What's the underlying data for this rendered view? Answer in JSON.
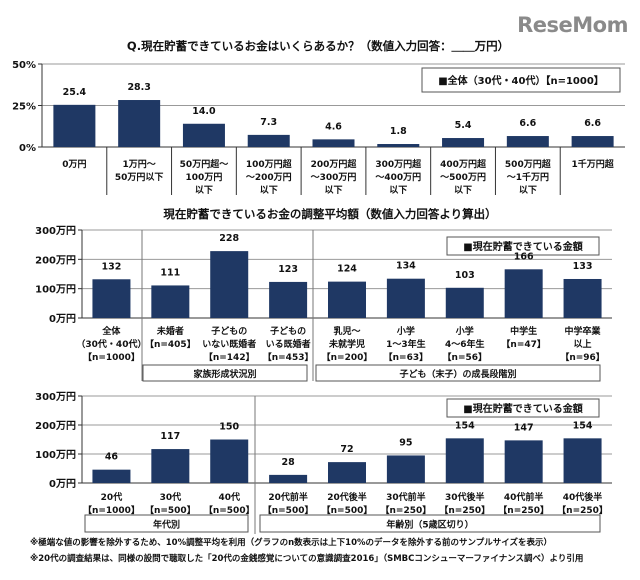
{
  "logo": "ReseMom",
  "colors": {
    "bar": "#1f3864",
    "grid": "#999999"
  },
  "chart_data": [
    {
      "type": "bar",
      "title": "Q.現在貯蓄できているお金はいくらあるか？（数値入力回答：＿＿万円）",
      "legend": "■全体（30代・40代）【n=1000】",
      "legend_position": "top-right",
      "ylim": [
        0,
        50
      ],
      "yticks": [
        "0%",
        "25%",
        "50%"
      ],
      "ytick_values": [
        0,
        25,
        50
      ],
      "grid": true,
      "categories": [
        [
          "0万円"
        ],
        [
          "1万円～",
          "50万円以下"
        ],
        [
          "50万円超～",
          "100万円",
          "以下"
        ],
        [
          "100万円超",
          "～200万円",
          "以下"
        ],
        [
          "200万円超",
          "～300万円",
          "以下"
        ],
        [
          "300万円超",
          "～400万円",
          "以下"
        ],
        [
          "400万円超",
          "～500万円",
          "以下"
        ],
        [
          "500万円超",
          "～1千万円",
          "以下"
        ],
        [
          "1千万円超"
        ]
      ],
      "values": [
        25.4,
        28.3,
        14.0,
        7.3,
        4.6,
        1.8,
        5.4,
        6.6,
        6.6
      ],
      "labels": [
        "25.4",
        "28.3",
        "14.0",
        "7.3",
        "4.6",
        "1.8",
        "5.4",
        "6.6",
        "6.6"
      ]
    },
    {
      "type": "bar",
      "title": "現在貯蓄できているお金の調整平均額（数値入力回答より算出）",
      "legend": "■現在貯蓄できている金額",
      "legend_position": "top-right",
      "ylim": [
        0,
        300
      ],
      "yticks": [
        "0万円",
        "100万円",
        "200万円",
        "300万円"
      ],
      "ytick_values": [
        0,
        100,
        200,
        300
      ],
      "grid": true,
      "categories": [
        [
          "全体",
          "（30代・40代）",
          "【n=1000】"
        ],
        [
          "未婚者",
          "【n=405】"
        ],
        [
          "子どもの",
          "いない既婚者",
          "【n=142】"
        ],
        [
          "子どもの",
          "いる既婚者",
          "【n=453】"
        ],
        [
          "乳児～",
          "未就学児",
          "【n=200】"
        ],
        [
          "小学",
          "1～3年生",
          "【n=63】"
        ],
        [
          "小学",
          "4～6年生",
          "【n=56】"
        ],
        [
          "中学生",
          "【n=47】"
        ],
        [
          "中学卒業",
          "以上",
          "【n=96】"
        ]
      ],
      "values": [
        132,
        111,
        228,
        123,
        124,
        134,
        103,
        166,
        133
      ],
      "labels": [
        "132",
        "111",
        "228",
        "123",
        "124",
        "134",
        "103",
        "166",
        "133"
      ],
      "groups": [
        {
          "label": "家族形成状況別"
        },
        {
          "label": "子ども（末子）の成長段階別"
        }
      ]
    },
    {
      "type": "bar",
      "legend": "■現在貯蓄できている金額",
      "legend_position": "top-right",
      "ylim": [
        0,
        300
      ],
      "yticks": [
        "0万円",
        "100万円",
        "200万円",
        "300万円"
      ],
      "ytick_values": [
        0,
        100,
        200,
        300
      ],
      "grid": true,
      "categories": [
        [
          "20代",
          "【n=1000】"
        ],
        [
          "30代",
          "【n=500】"
        ],
        [
          "40代",
          "【n=500】"
        ],
        [
          "20代前半",
          "【n=500】"
        ],
        [
          "20代後半",
          "【n=500】"
        ],
        [
          "30代前半",
          "【n=250】"
        ],
        [
          "30代後半",
          "【n=250】"
        ],
        [
          "40代前半",
          "【n=250】"
        ],
        [
          "40代後半",
          "【n=250】"
        ]
      ],
      "values": [
        46,
        117,
        150,
        28,
        72,
        95,
        154,
        147,
        154
      ],
      "labels": [
        "46",
        "117",
        "150",
        "28",
        "72",
        "95",
        "154",
        "147",
        "154"
      ],
      "groups": [
        {
          "label": "年代別"
        },
        {
          "label": "年齢別（5歳区切り）"
        }
      ]
    }
  ],
  "footnotes": [
    "※極端な値の影響を除外するため、10%調整平均を利用（グラフのn数表示は上下10%のデータを除外する前のサンプルサイズを表示）",
    "※20代の調査結果は、同様の設問で聴取した「20代の金銭感覚についての意識調査2016」（SMBCコンシューマーファイナンス調べ）より引用"
  ]
}
